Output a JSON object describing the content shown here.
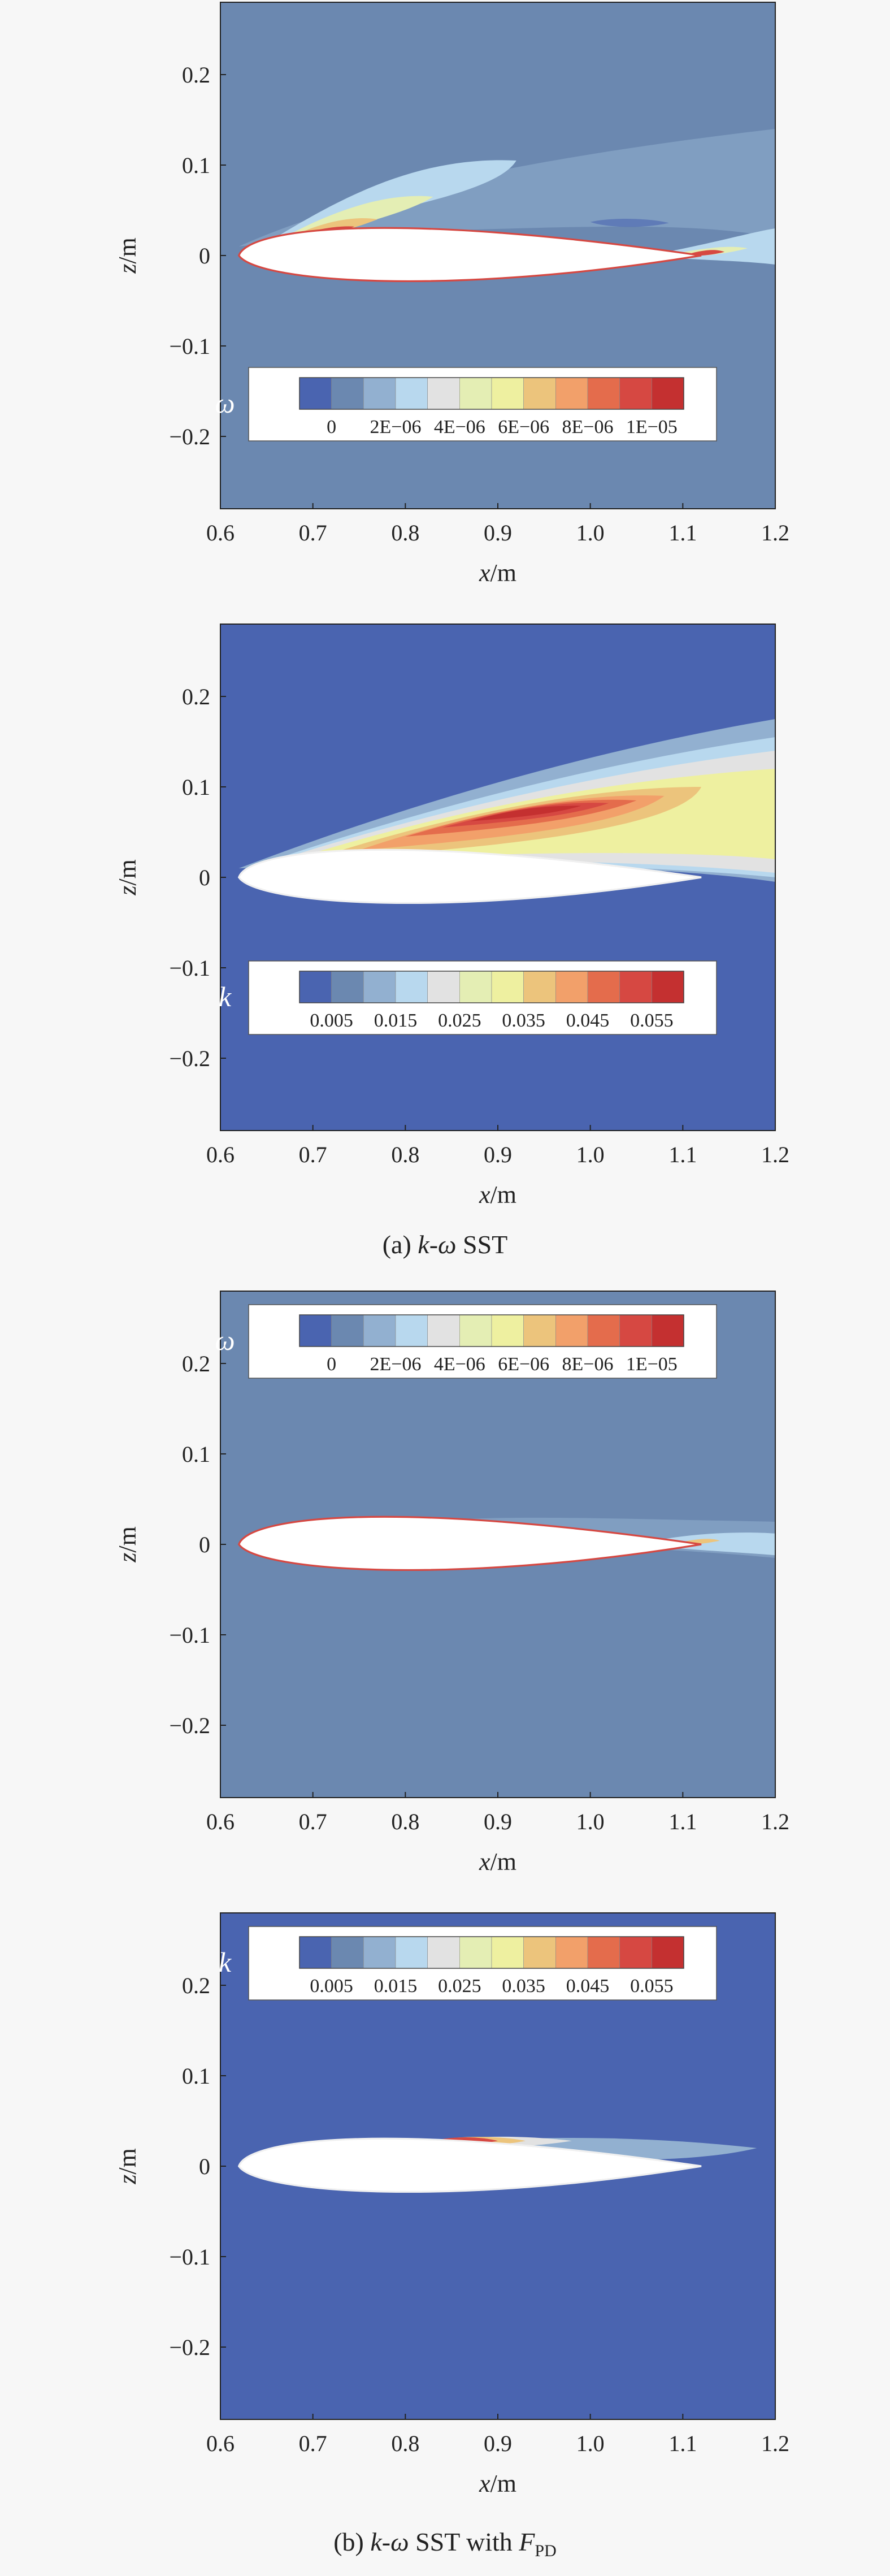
{
  "chart_data": [
    {
      "type": "heatmap",
      "panel": "a",
      "variable": "ω",
      "xlabel": "x/m",
      "ylabel": "z/m",
      "xlim": [
        0.6,
        1.2
      ],
      "ylim": [
        -0.28,
        0.28
      ],
      "xticks": [
        "0.6",
        "0.7",
        "0.8",
        "0.9",
        "1.0",
        "1.1",
        "1.2"
      ],
      "yticks": [
        "0.2",
        "0.1",
        "0",
        "−0.1",
        "−0.2"
      ],
      "legend": {
        "position": "lower-center",
        "symbol": "ω",
        "labels": [
          "0",
          "2E−06",
          "4E−06",
          "6E−06",
          "8E−06",
          "1E−05"
        ]
      },
      "background_level": 1
    },
    {
      "type": "heatmap",
      "panel": "a",
      "variable": "k",
      "xlabel": "x/m",
      "ylabel": "z/m",
      "xlim": [
        0.6,
        1.2
      ],
      "ylim": [
        -0.28,
        0.28
      ],
      "xticks": [
        "0.6",
        "0.7",
        "0.8",
        "0.9",
        "1.0",
        "1.1",
        "1.2"
      ],
      "yticks": [
        "0.2",
        "0.1",
        "0",
        "−0.1",
        "−0.2"
      ],
      "legend": {
        "position": "lower-center",
        "symbol": "k",
        "labels": [
          "0.005",
          "0.015",
          "0.025",
          "0.035",
          "0.045",
          "0.055"
        ]
      },
      "background_level": 0
    },
    {
      "type": "heatmap",
      "panel": "b",
      "variable": "ω",
      "xlabel": "x/m",
      "ylabel": "z/m",
      "xlim": [
        0.6,
        1.2
      ],
      "ylim": [
        -0.28,
        0.28
      ],
      "xticks": [
        "0.6",
        "0.7",
        "0.8",
        "0.9",
        "1.0",
        "1.1",
        "1.2"
      ],
      "yticks": [
        "0.2",
        "0.1",
        "0",
        "−0.1",
        "−0.2"
      ],
      "legend": {
        "position": "upper-center",
        "symbol": "ω",
        "labels": [
          "0",
          "2E−06",
          "4E−06",
          "6E−06",
          "8E−06",
          "1E−05"
        ]
      },
      "background_level": 1
    },
    {
      "type": "heatmap",
      "panel": "b",
      "variable": "k",
      "xlabel": "x/m",
      "ylabel": "z/m",
      "xlim": [
        0.6,
        1.2
      ],
      "ylim": [
        -0.28,
        0.28
      ],
      "xticks": [
        "0.6",
        "0.7",
        "0.8",
        "0.9",
        "1.0",
        "1.1",
        "1.2"
      ],
      "yticks": [
        "0.2",
        "0.1",
        "0",
        "−0.1",
        "−0.2"
      ],
      "legend": {
        "position": "upper-center",
        "symbol": "k",
        "labels": [
          "0.005",
          "0.015",
          "0.025",
          "0.035",
          "0.045",
          "0.055"
        ]
      },
      "background_level": 0
    }
  ],
  "colormap": [
    "#4a64b0",
    "#6b88b0",
    "#92b0d0",
    "#b8d8ee",
    "#e2e2e2",
    "#e4eeb4",
    "#eef0a0",
    "#ecc47c",
    "#f2a06a",
    "#e46c4c",
    "#d64842",
    "#c43030"
  ],
  "captions": {
    "a": "(a) k-ω SST",
    "b_main": "(b) k-ω SST with F",
    "b_sub": "PD"
  }
}
